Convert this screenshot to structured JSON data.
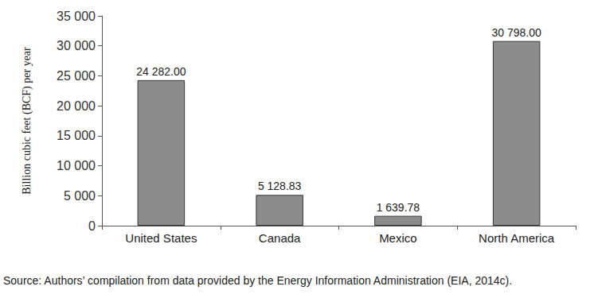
{
  "chart_data": {
    "type": "bar",
    "y_label": "Billion cubic feet (BCF) per year",
    "categories": [
      "United States",
      "Canada",
      "Mexico",
      "North America"
    ],
    "values": [
      24282.0,
      5128.83,
      1639.78,
      30798.0
    ],
    "value_labels": [
      "24 282.00",
      "5 128.83",
      "1 639.78",
      "30 798.00"
    ],
    "data_labels": true,
    "color": "#8c8c8c",
    "ylim": [
      0,
      35000
    ],
    "yticks": [
      0,
      {
        "value": 5000,
        "label": "5 000"
      },
      {
        "value": 10000,
        "label": "10 000"
      },
      {
        "value": 15000,
        "label": "15 000"
      },
      {
        "value": 20000,
        "label": "20 000"
      },
      {
        "value": 25000,
        "label": "25 000"
      },
      {
        "value": 30000,
        "label": "30 000"
      },
      {
        "value": 35000,
        "label": "35 000"
      }
    ],
    "grid": false,
    "annotations": [
      "Source: Authors’ compilation from data provided by the Energy Information Administration (EIA, 2014c)."
    ]
  }
}
